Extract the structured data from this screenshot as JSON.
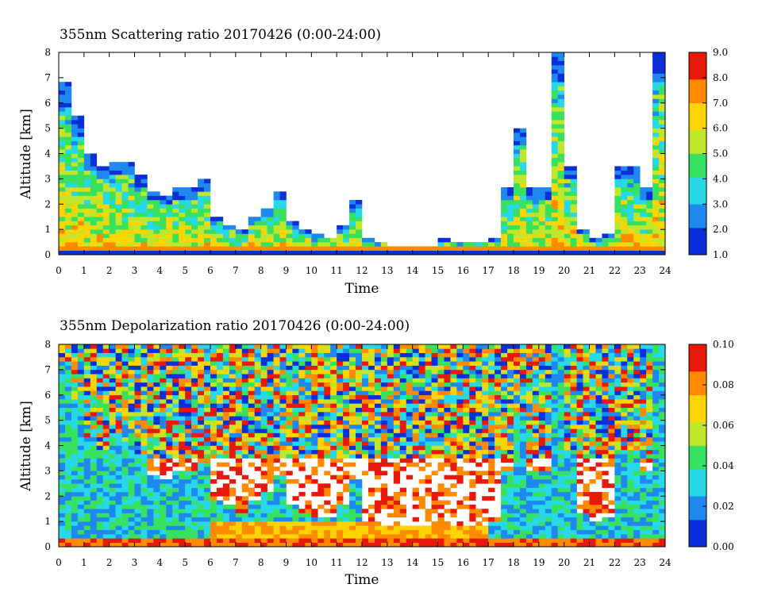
{
  "chart_data": [
    {
      "type": "heatmap",
      "title": "355nm Scattering ratio  20170426 (0:00-24:00)",
      "xlabel": "Time",
      "ylabel": "Altitude [km]",
      "xlim": [
        0,
        24
      ],
      "ylim": [
        0,
        8
      ],
      "xticks": [
        "0",
        "1",
        "2",
        "3",
        "4",
        "5",
        "6",
        "7",
        "8",
        "9",
        "10",
        "11",
        "12",
        "13",
        "14",
        "15",
        "16",
        "17",
        "18",
        "19",
        "20",
        "21",
        "22",
        "23",
        "24"
      ],
      "yticks": [
        "0",
        "1",
        "2",
        "3",
        "4",
        "5",
        "6",
        "7",
        "8"
      ],
      "colorbar": {
        "min": 1.0,
        "max": 9.0,
        "ticks": [
          "1.0",
          "2.0",
          "3.0",
          "4.0",
          "5.0",
          "6.0",
          "7.0",
          "8.0",
          "9.0"
        ]
      },
      "colormap": [
        "#0a2fd8",
        "#1e88f0",
        "#27d8e8",
        "#38e060",
        "#bfe62a",
        "#ffd400",
        "#ff8a00",
        "#e8180a"
      ],
      "column_tops_km": [
        6.8,
        5.5,
        4.0,
        3.5,
        3.7,
        3.7,
        3.2,
        2.5,
        2.3,
        2.6,
        2.6,
        3.0,
        1.5,
        1.2,
        1.0,
        1.5,
        1.8,
        2.5,
        1.3,
        1.0,
        0.8,
        0.7,
        1.2,
        2.2,
        0.6,
        0.5,
        0.4,
        0.4,
        0.4,
        0.4,
        0.6,
        0.5,
        0.5,
        0.5,
        0.6,
        2.6,
        5.0,
        2.6,
        2.6,
        8.0,
        3.5,
        1.0,
        0.6,
        0.8,
        3.5,
        3.5,
        2.6,
        8.0
      ]
    },
    {
      "type": "heatmap",
      "title": "355nm Depolarization ratio  20170426 (0:00-24:00)",
      "xlabel": "Time",
      "ylabel": "Altitude [km]",
      "xlim": [
        0,
        24
      ],
      "ylim": [
        0,
        8
      ],
      "xticks": [
        "0",
        "1",
        "2",
        "3",
        "4",
        "5",
        "6",
        "7",
        "8",
        "9",
        "10",
        "11",
        "12",
        "13",
        "14",
        "15",
        "16",
        "17",
        "18",
        "19",
        "20",
        "21",
        "22",
        "23",
        "24"
      ],
      "yticks": [
        "0",
        "1",
        "2",
        "3",
        "4",
        "5",
        "6",
        "7",
        "8"
      ],
      "colorbar": {
        "min": 0.0,
        "max": 0.1,
        "ticks": [
          "0.00",
          "0.02",
          "0.04",
          "0.06",
          "0.08",
          "0.10"
        ]
      },
      "colormap": [
        "#0a2fd8",
        "#1e88f0",
        "#27d8e8",
        "#38e060",
        "#bfe62a",
        "#ffd400",
        "#ff8a00",
        "#e8180a"
      ]
    }
  ]
}
